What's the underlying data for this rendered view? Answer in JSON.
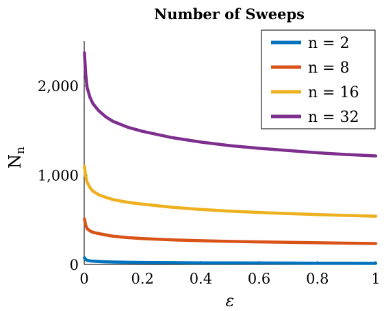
{
  "chart_data": {
    "type": "line",
    "title": "Number of Sweeps",
    "xlabel": "ε",
    "ylabel": "N",
    "ylabel_subscript": "n",
    "xlim": [
      0,
      1
    ],
    "ylim": [
      0,
      2500
    ],
    "x_ticks": [
      0,
      0.2,
      0.4,
      0.6,
      0.8,
      1
    ],
    "x_tick_labels": [
      "0",
      "0.2",
      "0.4",
      "0.6",
      "0.8",
      "1"
    ],
    "y_ticks": [
      0,
      1000,
      2000
    ],
    "y_tick_labels": [
      "0",
      "1,000",
      "2,000"
    ],
    "grid": false,
    "legend_position": "top-right",
    "x": [
      0.001,
      0.005,
      0.01,
      0.02,
      0.03,
      0.05,
      0.075,
      0.1,
      0.15,
      0.2,
      0.3,
      0.4,
      0.5,
      0.6,
      0.7,
      0.8,
      0.9,
      1.0
    ],
    "series": [
      {
        "name": "n = 2",
        "color": "#0072BD",
        "values": [
          75,
          55,
          45,
          40,
          36,
          32,
          29,
          27,
          24,
          22,
          20,
          18,
          17,
          16,
          15,
          14,
          13,
          12
        ]
      },
      {
        "name": "n = 8",
        "color": "#D95319",
        "values": [
          510,
          440,
          400,
          375,
          360,
          345,
          330,
          315,
          300,
          290,
          275,
          265,
          258,
          252,
          247,
          242,
          238,
          234
        ]
      },
      {
        "name": "n = 16",
        "color": "#EDB120",
        "values": [
          1100,
          990,
          920,
          860,
          820,
          780,
          750,
          725,
          695,
          675,
          640,
          615,
          597,
          582,
          570,
          558,
          548,
          540
        ]
      },
      {
        "name": "n = 32",
        "color": "#7E2F8E",
        "values": [
          2370,
          2140,
          1980,
          1870,
          1800,
          1720,
          1650,
          1600,
          1535,
          1490,
          1420,
          1370,
          1330,
          1300,
          1275,
          1250,
          1230,
          1215
        ]
      }
    ]
  }
}
